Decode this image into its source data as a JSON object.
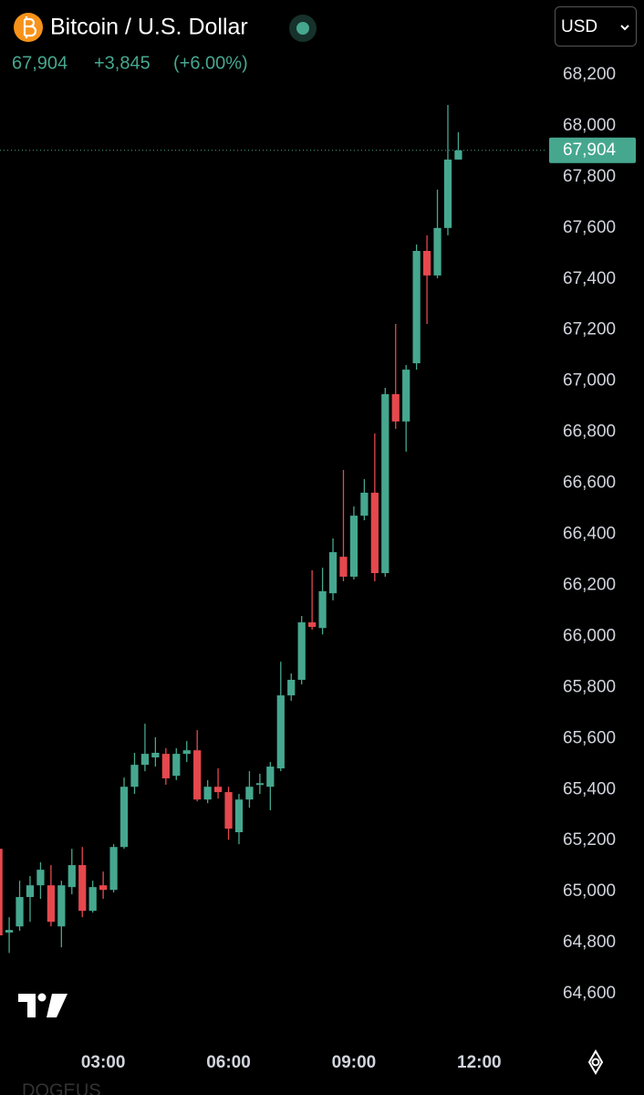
{
  "header": {
    "title": "Bitcoin / U.S. Dollar",
    "price": "67,904",
    "change": "+3,845",
    "change_pct": "(+6.00%)",
    "currency": "USD",
    "footer": "DOGEUS"
  },
  "chart_data": {
    "type": "candlestick",
    "x": [
      0.5,
      0.75,
      1,
      1.25,
      1.5,
      1.75,
      2,
      2.25,
      2.5,
      2.75,
      3,
      3.25,
      3.5,
      3.75,
      4,
      4.25,
      4.5,
      4.75,
      5,
      5.25,
      5.5,
      5.75,
      6,
      6.25,
      6.5,
      6.75,
      7,
      7.25,
      7.5,
      7.75,
      8,
      8.25,
      8.5,
      8.75,
      9,
      9.25,
      9.5,
      9.75,
      10,
      10.25,
      10.5,
      10.75,
      11,
      11.25,
      11.5
    ],
    "open": [
      65168,
      64840,
      64864,
      64979,
      65025,
      65025,
      64864,
      65018,
      65104,
      64925,
      65025,
      65007,
      65175,
      65411,
      65497,
      65526,
      65540,
      65454,
      65540,
      65554,
      65361,
      65411,
      65390,
      65233,
      65361,
      65418,
      65411,
      65483,
      65769,
      65830,
      66055,
      66033,
      66169,
      66312,
      66234,
      66473,
      66563,
      66248,
      66949,
      66842,
      67070,
      67510,
      67414,
      67600,
      67868
    ],
    "high": [
      65222,
      64900,
      65043,
      65061,
      65115,
      65104,
      65043,
      65168,
      65175,
      65043,
      65079,
      65186,
      65447,
      65544,
      65658,
      65605,
      65562,
      65562,
      65590,
      65633,
      65437,
      65483,
      65411,
      65383,
      65472,
      65462,
      65508,
      65901,
      65855,
      66080,
      66259,
      66269,
      66384,
      66652,
      66509,
      66616,
      66795,
      66974,
      67224,
      67063,
      67535,
      67571,
      67750,
      68082,
      67975
    ],
    "low": [
      64775,
      64760,
      64847,
      64882,
      64972,
      64864,
      64782,
      64990,
      64900,
      64918,
      64972,
      64997,
      65168,
      65383,
      65472,
      65490,
      65419,
      65437,
      65508,
      65354,
      65347,
      65365,
      65204,
      65186,
      65329,
      65383,
      65319,
      65472,
      65748,
      65812,
      66026,
      66008,
      66141,
      66216,
      66223,
      66455,
      66216,
      66234,
      66813,
      66724,
      67045,
      67224,
      67403,
      67571,
      67868
    ],
    "close": [
      64829,
      64850,
      64979,
      65025,
      65086,
      64882,
      65025,
      65104,
      64925,
      65018,
      65007,
      65175,
      65411,
      65497,
      65540,
      65544,
      65444,
      65540,
      65554,
      65361,
      65411,
      65390,
      65247,
      65361,
      65411,
      65425,
      65490,
      65769,
      65830,
      66055,
      66037,
      66177,
      66330,
      66234,
      66473,
      66563,
      66248,
      66949,
      66842,
      67045,
      67510,
      67414,
      67600,
      67868,
      67904
    ],
    "up_color": "#46a78f",
    "down_color": "#e5484d",
    "xlim": [
      0.53,
      13.63
    ],
    "xticks": [
      {
        "value": 3,
        "label": "03:00"
      },
      {
        "value": 6,
        "label": "06:00"
      },
      {
        "value": 9,
        "label": "09:00"
      },
      {
        "value": 12,
        "label": "12:00"
      }
    ],
    "ylim": [
      64418,
      68493
    ],
    "yticks": [
      {
        "value": 64600,
        "label": "64,600"
      },
      {
        "value": 64800,
        "label": "64,800"
      },
      {
        "value": 65000,
        "label": "65,000"
      },
      {
        "value": 65200,
        "label": "65,200"
      },
      {
        "value": 65400,
        "label": "65,400"
      },
      {
        "value": 65600,
        "label": "65,600"
      },
      {
        "value": 65800,
        "label": "65,800"
      },
      {
        "value": 66000,
        "label": "66,000"
      },
      {
        "value": 66200,
        "label": "66,200"
      },
      {
        "value": 66400,
        "label": "66,400"
      },
      {
        "value": 66600,
        "label": "66,600"
      },
      {
        "value": 66800,
        "label": "66,800"
      },
      {
        "value": 67000,
        "label": "67,000"
      },
      {
        "value": 67200,
        "label": "67,200"
      },
      {
        "value": 67400,
        "label": "67,400"
      },
      {
        "value": 67600,
        "label": "67,600"
      },
      {
        "value": 67800,
        "label": "67,800"
      },
      {
        "value": 68000,
        "label": "68,000"
      },
      {
        "value": 68200,
        "label": "68,200"
      }
    ],
    "last_price": {
      "value": 67904,
      "label": "67,904"
    },
    "grid": false
  }
}
